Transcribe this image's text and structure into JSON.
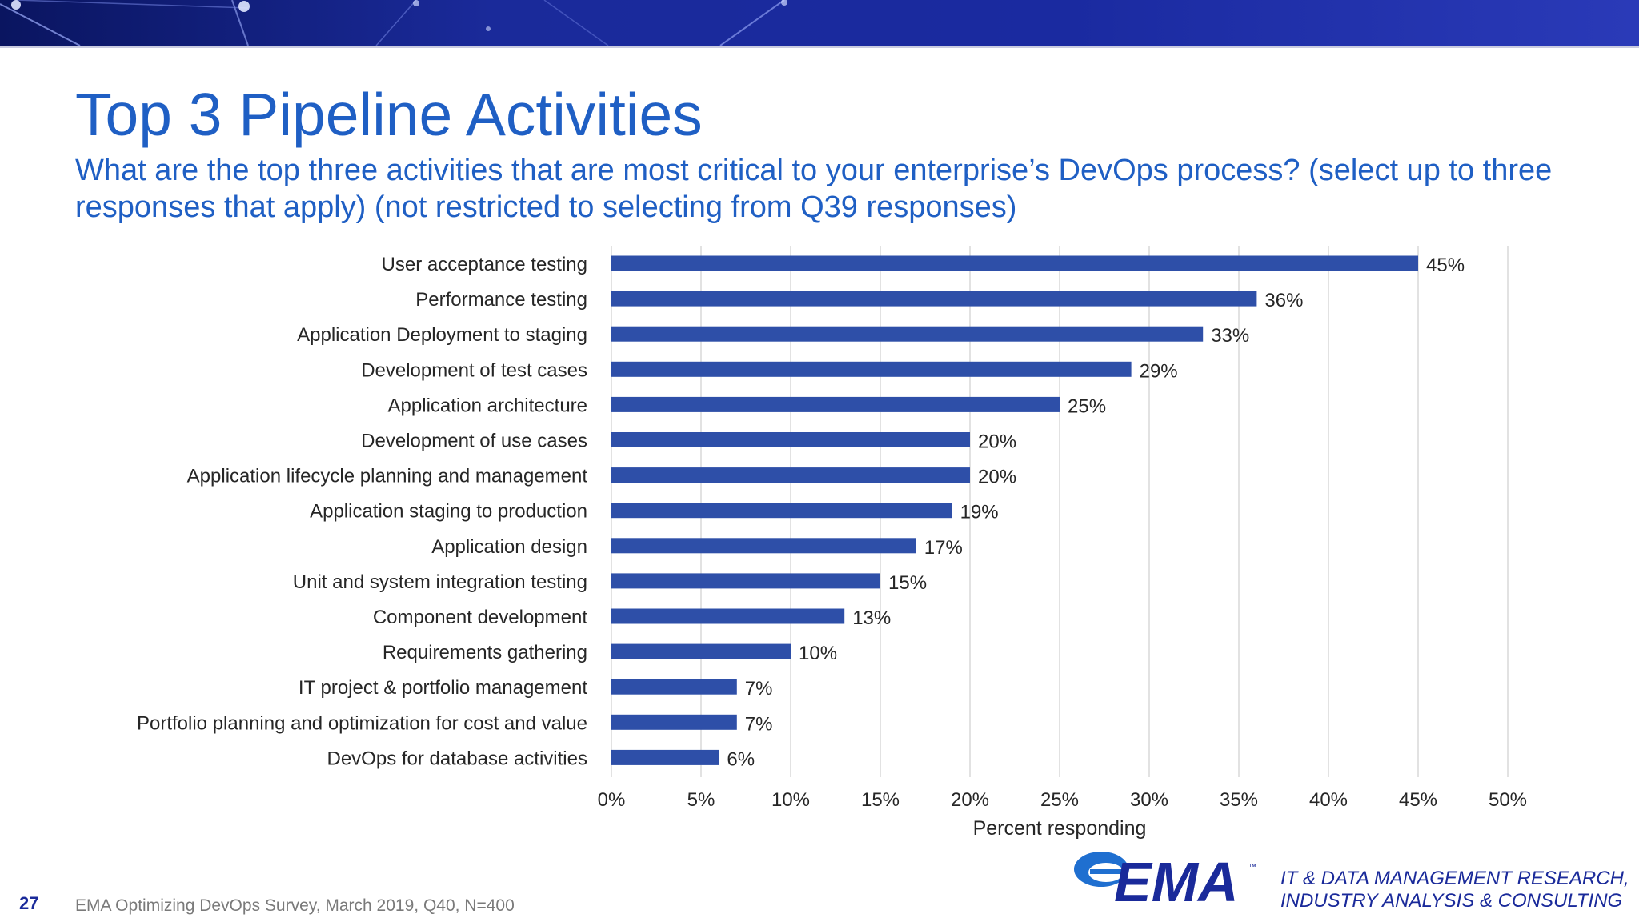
{
  "slide": {
    "title": "Top 3 Pipeline Activities",
    "subtitle": "What are the top three activities that are most critical to your enterprise’s DevOps process?  (select up to three responses that apply) (not restricted to selecting from Q39 responses)",
    "page_number": "27",
    "source": "EMA  Optimizing DevOps Survey, March 2019, Q40, N=400",
    "logo_text": "EMA",
    "tagline_line1": "IT & DATA MANAGEMENT RESEARCH,",
    "tagline_line2": "INDUSTRY ANALYSIS & CONSULTING",
    "colors": {
      "accent": "#1f5fc4",
      "bar": "#2e4fa8",
      "banner": "#1a2a9a"
    }
  },
  "chart_data": {
    "type": "bar",
    "orientation": "horizontal",
    "categories": [
      "User acceptance testing",
      "Performance testing",
      "Application Deployment to staging",
      "Development of test cases",
      "Application architecture",
      "Development of use cases",
      "Application lifecycle planning and management",
      "Application staging to production",
      "Application design",
      "Unit and system integration testing",
      "Component development",
      "Requirements gathering",
      "IT project & portfolio management",
      "Portfolio planning and optimization for cost and value",
      "DevOps for database activities"
    ],
    "values": [
      45,
      36,
      33,
      29,
      25,
      20,
      20,
      19,
      17,
      15,
      13,
      10,
      7,
      7,
      6
    ],
    "data_labels": [
      "45%",
      "36%",
      "33%",
      "29%",
      "25%",
      "20%",
      "20%",
      "19%",
      "17%",
      "15%",
      "13%",
      "10%",
      "7%",
      "7%",
      "6%"
    ],
    "xlabel": "Percent responding",
    "xlim": [
      0,
      50
    ],
    "x_ticks": [
      0,
      5,
      10,
      15,
      20,
      25,
      30,
      35,
      40,
      45,
      50
    ],
    "x_tick_labels": [
      "0%",
      "5%",
      "10%",
      "15%",
      "20%",
      "25%",
      "30%",
      "35%",
      "40%",
      "45%",
      "50%"
    ],
    "grid": "vertical",
    "legend": "none"
  }
}
